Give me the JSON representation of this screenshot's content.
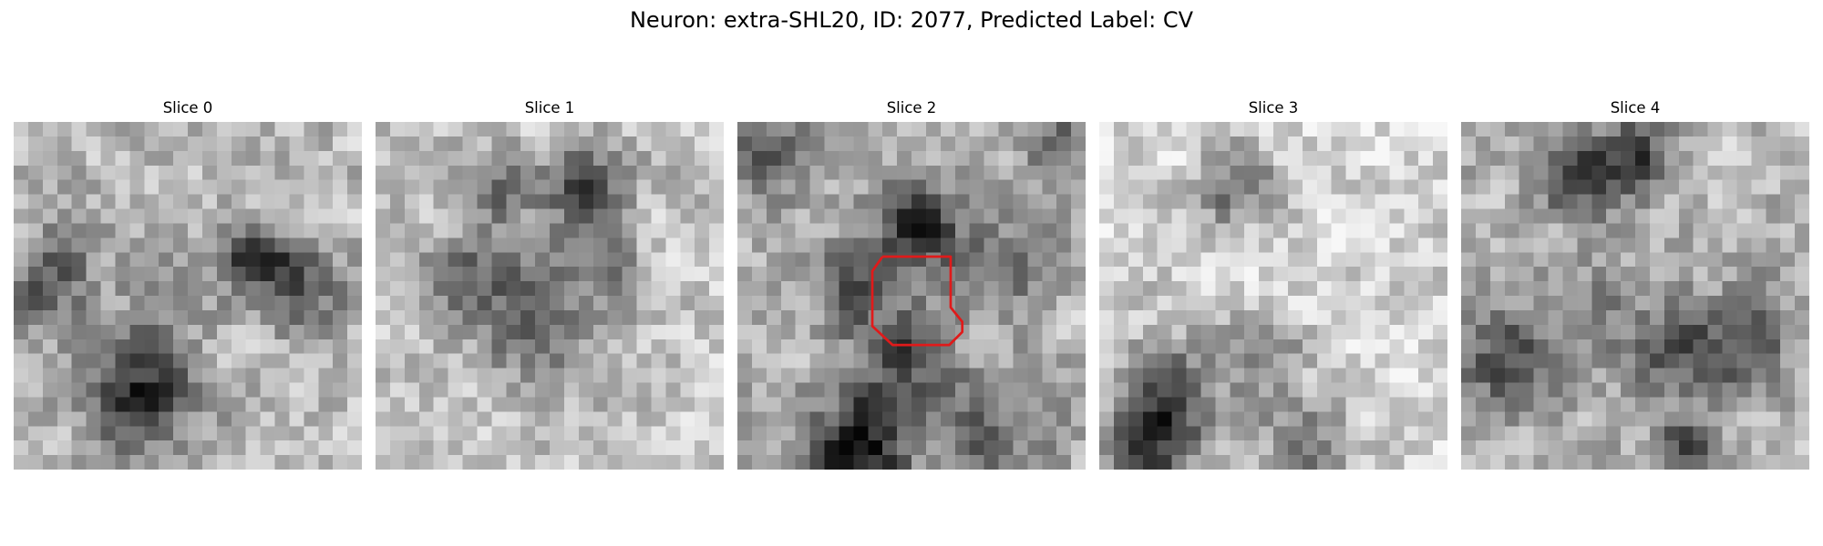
{
  "figure": {
    "title": "Neuron: extra-SHL20, ID: 2077, Predicted Label: CV"
  },
  "panels": [
    {
      "label": "Slice 0"
    },
    {
      "label": "Slice 1"
    },
    {
      "label": "Slice 2"
    },
    {
      "label": "Slice 3"
    },
    {
      "label": "Slice 4"
    }
  ],
  "image": {
    "colormap": "grayscale",
    "contour_color": "#e01a1a",
    "contour_slice": "Slice 2"
  }
}
